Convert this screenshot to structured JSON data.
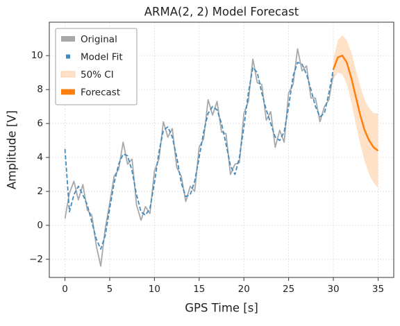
{
  "chart_data": {
    "type": "line",
    "title": "ARMA(2, 2) Model Forecast",
    "x_label": "GPS Time [s]",
    "y_label": "Amplitude [V]",
    "xlim": [
      -1.75,
      36.75
    ],
    "ylim": [
      -3.07,
      11.97
    ],
    "xticks": [
      0,
      5,
      10,
      15,
      20,
      25,
      30,
      35
    ],
    "yticks": [
      {
        "value": -2,
        "label": "−2"
      },
      0,
      2,
      4,
      6,
      8,
      10
    ],
    "grid": true,
    "legend": "upper left",
    "series": [
      {
        "name": "Original",
        "color": "#a8a8a8",
        "style": "solid",
        "x": [
          0,
          0.5,
          1,
          1.5,
          2,
          2.5,
          3,
          3.5,
          4,
          4.5,
          5,
          5.5,
          6,
          6.5,
          7,
          7.5,
          8,
          8.5,
          9,
          9.5,
          10,
          10.5,
          11,
          11.5,
          12,
          12.5,
          13,
          13.5,
          14,
          14.5,
          15,
          15.5,
          16,
          16.5,
          17,
          17.5,
          18,
          18.5,
          19,
          19.5,
          20,
          20.5,
          21,
          21.5,
          22,
          22.5,
          23,
          23.5,
          24,
          24.5,
          25,
          25.5,
          26,
          26.5,
          27,
          27.5,
          28,
          28.5,
          29,
          29.5,
          30
        ],
        "values": [
          0.4,
          1.9,
          2.6,
          1.5,
          2.4,
          0.9,
          0.6,
          -1.2,
          -2.4,
          -0.2,
          1.3,
          2.9,
          3.3,
          4.9,
          3.6,
          3.9,
          1.2,
          0.3,
          1.1,
          0.7,
          3.2,
          3.9,
          6.1,
          5.2,
          5.7,
          3.4,
          2.9,
          1.4,
          2.3,
          2.0,
          4.6,
          5.1,
          7.4,
          6.5,
          7.3,
          5.5,
          5.4,
          3.0,
          3.6,
          3.7,
          6.6,
          7.3,
          9.8,
          8.4,
          8.3,
          6.2,
          6.7,
          4.6,
          5.6,
          4.9,
          7.8,
          8.3,
          10.4,
          9.1,
          9.4,
          7.5,
          7.5,
          6.1,
          7.0,
          7.4,
          8.9
        ]
      },
      {
        "name": "Model Fit",
        "color": "#3f8bbf",
        "style": "dashed",
        "x": [
          0,
          0.5,
          1,
          1.5,
          2,
          2.5,
          3,
          3.5,
          4,
          4.5,
          5,
          5.5,
          6,
          6.5,
          7,
          7.5,
          8,
          8.5,
          9,
          9.5,
          10,
          10.5,
          11,
          11.5,
          12,
          12.5,
          13,
          13.5,
          14,
          14.5,
          15,
          15.5,
          16,
          16.5,
          17,
          17.5,
          18,
          18.5,
          19,
          19.5,
          20,
          20.5,
          21,
          21.5,
          22,
          22.5,
          23,
          23.5,
          24,
          24.5,
          25,
          25.5,
          26,
          26.5,
          27,
          27.5,
          28,
          28.5,
          29,
          29.5,
          30
        ],
        "values": [
          4.5,
          0.8,
          1.8,
          2.3,
          1.8,
          1.2,
          0.2,
          -0.8,
          -1.4,
          -0.6,
          1.0,
          2.5,
          3.6,
          4.2,
          4.1,
          3.2,
          1.8,
          0.8,
          0.6,
          1.0,
          2.5,
          4.3,
          5.6,
          5.8,
          5.2,
          4.0,
          2.5,
          1.7,
          1.8,
          2.6,
          4.0,
          5.5,
          6.6,
          7.0,
          6.8,
          6.0,
          4.8,
          3.5,
          3.0,
          4.0,
          5.8,
          7.8,
          9.3,
          9.0,
          7.8,
          6.8,
          6.0,
          5.2,
          5.0,
          5.5,
          7.0,
          8.8,
          9.6,
          9.5,
          8.9,
          8.0,
          7.0,
          6.4,
          6.6,
          7.8,
          9.2
        ]
      },
      {
        "name": "Forecast",
        "color": "#ff7f0e",
        "style": "solid",
        "x": [
          30,
          30.5,
          31,
          31.5,
          32,
          32.5,
          33,
          33.5,
          34,
          34.5,
          35
        ],
        "values": [
          9.2,
          9.9,
          10.0,
          9.6,
          8.7,
          7.6,
          6.5,
          5.6,
          5.0,
          4.6,
          4.4
        ]
      }
    ],
    "bands": [
      {
        "name": "50% CI",
        "color": "#ffdcbd",
        "x": [
          30,
          30.5,
          31,
          31.5,
          32,
          32.5,
          33,
          33.5,
          34,
          34.5,
          35
        ],
        "lower": [
          8.6,
          9.0,
          8.9,
          8.3,
          7.3,
          6.0,
          4.8,
          3.8,
          3.0,
          2.5,
          2.2
        ],
        "upper": [
          9.8,
          10.9,
          11.2,
          10.9,
          10.2,
          9.2,
          8.2,
          7.4,
          6.9,
          6.6,
          6.6
        ]
      }
    ]
  }
}
